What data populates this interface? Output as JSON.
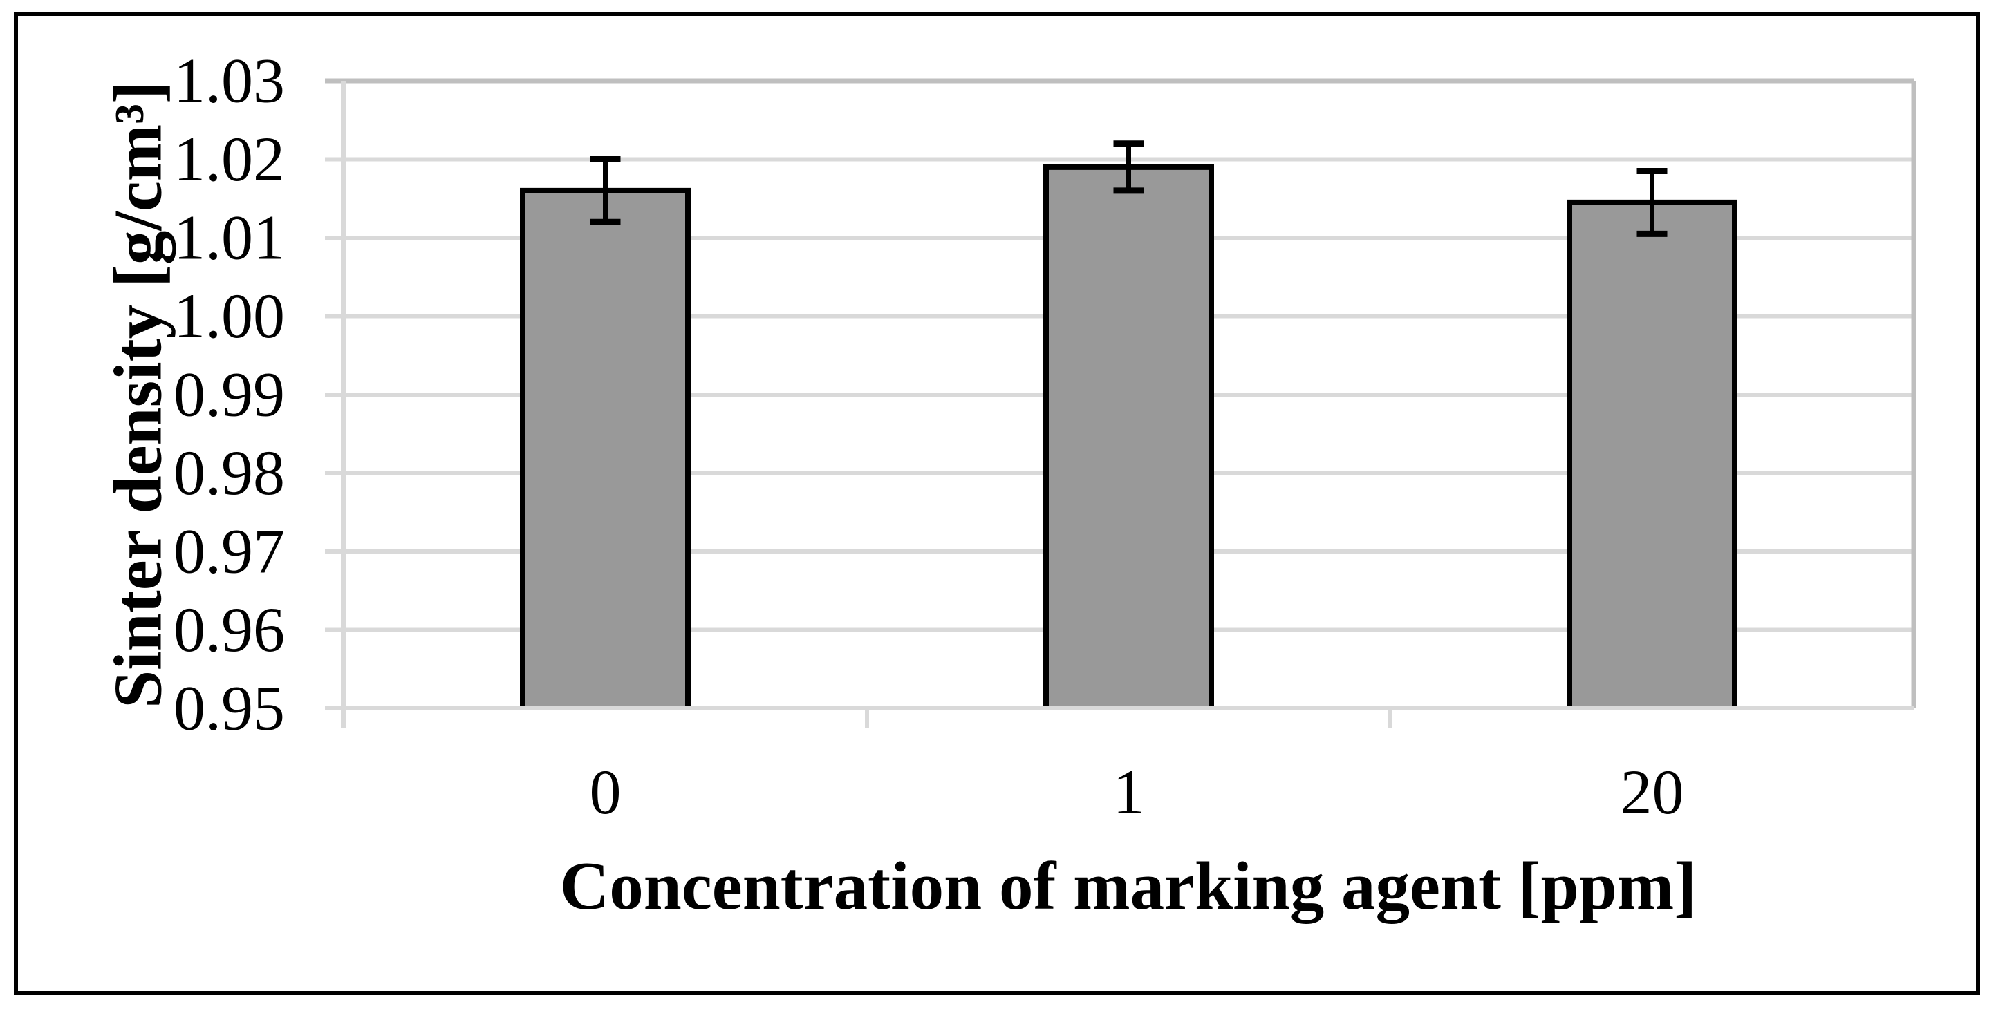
{
  "chart_data": {
    "type": "bar",
    "title": "",
    "categories": [
      "0",
      "1",
      "20"
    ],
    "values": [
      1.016,
      1.019,
      1.0145
    ],
    "error_bars": [
      0.004,
      0.003,
      0.004
    ],
    "xlabel": "Concentration of marking agent [ppm]",
    "ylabel": "Sinter density [g/cm³]",
    "ylim": [
      0.95,
      1.03
    ],
    "ytick_step": 0.01,
    "ytick_labels": [
      "0.95",
      "0.96",
      "0.97",
      "0.98",
      "0.99",
      "1.00",
      "1.01",
      "1.02",
      "1.03"
    ],
    "grid": "horizontal-major",
    "legend": false,
    "colors": {
      "bar_fill": "#999999",
      "bar_border": "#000000",
      "gridline": "#D9D9D9",
      "plot_edge": "#BFBFBF",
      "error_bar": "#000000",
      "figure_border": "#000000",
      "background": "#FFFFFF",
      "text": "#000000"
    }
  }
}
